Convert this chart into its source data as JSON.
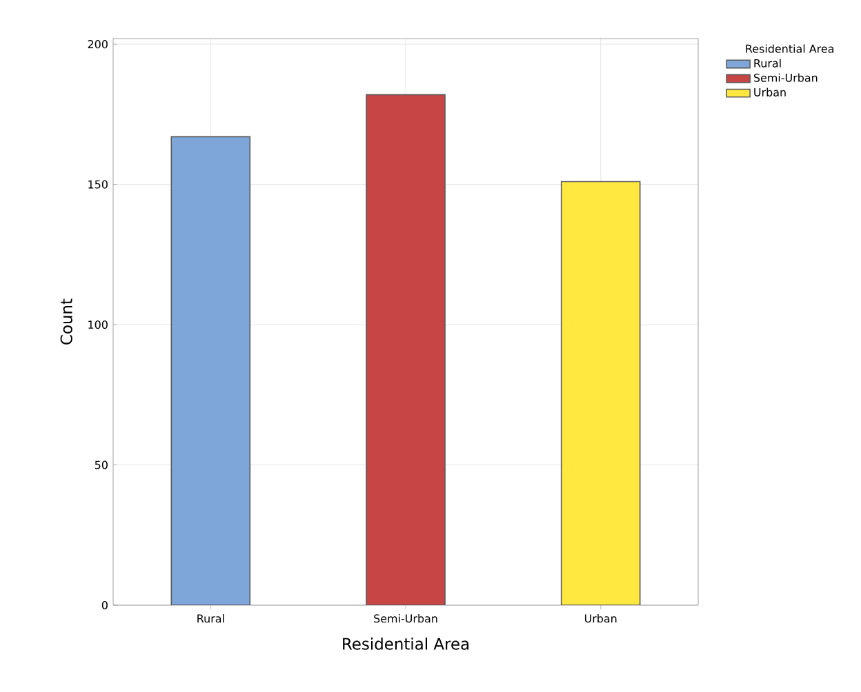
{
  "chart_data": {
    "type": "bar",
    "xlabel": "Residential Area",
    "ylabel": "Count",
    "legend_title": "Residential Area",
    "categories": [
      "Rural",
      "Semi-Urban",
      "Urban"
    ],
    "series": [
      {
        "name": "Rural",
        "color": "#7ea6d8",
        "values": [
          167,
          null,
          null
        ]
      },
      {
        "name": "Semi-Urban",
        "color": "#c84545",
        "values": [
          null,
          182,
          null
        ]
      },
      {
        "name": "Urban",
        "color": "#ffe840",
        "values": [
          null,
          null,
          151
        ]
      }
    ],
    "ylim": [
      0,
      202
    ],
    "yticks": [
      0,
      50,
      100,
      150,
      200
    ],
    "grid": true,
    "legend": "top right"
  }
}
